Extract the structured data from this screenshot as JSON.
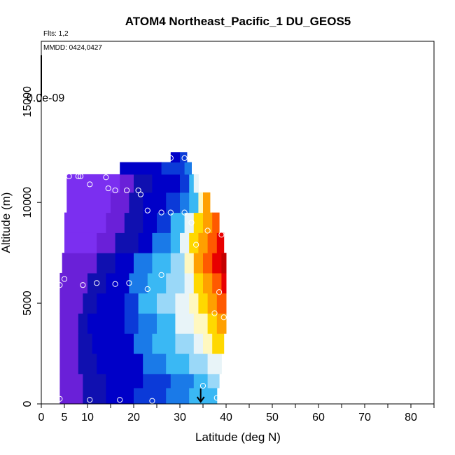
{
  "chart_data": {
    "type": "heatmap",
    "title": "ATOM4 Northeast_Pacific_1 DU_GEOS5",
    "flights_label": "Flts: 1,2",
    "dates_label": "MMDD: 0424,0427",
    "colorbar_label": "0.0e-09",
    "xlabel": "Latitude (deg N)",
    "ylabel": "Altitude (m)",
    "xlim": [
      0,
      85
    ],
    "ylim": [
      0,
      18000
    ],
    "x_tick_labels": [
      "0",
      "5",
      "10",
      "20",
      "30",
      "40",
      "50",
      "60",
      "70",
      "80"
    ],
    "x_tick_values": [
      0,
      5,
      10,
      20,
      30,
      40,
      50,
      60,
      70,
      80
    ],
    "x_minor_ticks": [
      15,
      25,
      35,
      45,
      55,
      65,
      75,
      85
    ],
    "y_tick_labels": [
      "0",
      "5000",
      "10000",
      "15000"
    ],
    "y_tick_values": [
      0,
      5000,
      10000,
      15000
    ],
    "colormap": [
      "#7b2ff0",
      "#6a20d8",
      "#1010b0",
      "#0000c8",
      "#0b3ad8",
      "#1a7ae8",
      "#3ab8f4",
      "#9ad8f8",
      "#e8f4f8",
      "#fff8c0",
      "#ffd800",
      "#ffa000",
      "#ff5a00",
      "#e80000",
      "#c40000"
    ],
    "layers": [
      {
        "alt": [
          0,
          800
        ],
        "x": [
          4.0,
          38.0
        ],
        "stops": [
          [
            4,
            1
          ],
          [
            9,
            2
          ],
          [
            14,
            3
          ],
          [
            20,
            4
          ],
          [
            27,
            5
          ],
          [
            32,
            6
          ]
        ]
      },
      {
        "alt": [
          800,
          1500
        ],
        "x": [
          4.0,
          38.5
        ],
        "stops": [
          [
            4,
            1
          ],
          [
            9,
            2
          ],
          [
            14,
            3
          ],
          [
            22,
            4
          ],
          [
            28,
            5
          ],
          [
            33,
            6
          ],
          [
            36,
            7
          ]
        ]
      },
      {
        "alt": [
          1500,
          2500
        ],
        "x": [
          4.0,
          39.0
        ],
        "stops": [
          [
            4,
            1
          ],
          [
            8,
            2
          ],
          [
            12,
            3
          ],
          [
            22,
            5
          ],
          [
            27,
            6
          ],
          [
            32,
            7
          ],
          [
            36,
            8
          ]
        ]
      },
      {
        "alt": [
          2500,
          3500
        ],
        "x": [
          4.0,
          39.5
        ],
        "stops": [
          [
            4,
            1
          ],
          [
            8,
            2
          ],
          [
            11,
            3
          ],
          [
            20,
            5
          ],
          [
            24,
            6
          ],
          [
            29,
            7
          ],
          [
            33,
            8
          ],
          [
            35,
            9
          ],
          [
            37,
            10
          ]
        ]
      },
      {
        "alt": [
          3500,
          4500
        ],
        "x": [
          4.0,
          40.0
        ],
        "stops": [
          [
            4,
            1
          ],
          [
            8,
            2
          ],
          [
            10,
            3
          ],
          [
            18,
            4
          ],
          [
            21,
            5
          ],
          [
            25,
            6
          ],
          [
            29,
            8
          ],
          [
            33,
            9
          ],
          [
            36,
            10
          ],
          [
            38,
            11
          ]
        ]
      },
      {
        "alt": [
          4500,
          5500
        ],
        "x": [
          4.0,
          40.0
        ],
        "stops": [
          [
            4,
            1
          ],
          [
            9,
            2
          ],
          [
            12,
            3
          ],
          [
            18,
            4
          ],
          [
            21,
            6
          ],
          [
            25,
            7
          ],
          [
            29,
            8
          ],
          [
            32,
            9
          ],
          [
            34,
            10
          ],
          [
            36,
            11
          ],
          [
            38,
            12
          ]
        ]
      },
      {
        "alt": [
          5500,
          6500
        ],
        "x": [
          4.0,
          40.0
        ],
        "stops": [
          [
            4,
            1
          ],
          [
            10,
            2
          ],
          [
            14,
            3
          ],
          [
            19,
            5
          ],
          [
            23,
            6
          ],
          [
            27,
            7
          ],
          [
            31,
            8
          ],
          [
            33,
            10
          ],
          [
            35,
            11
          ],
          [
            37,
            12
          ],
          [
            39,
            13
          ]
        ]
      },
      {
        "alt": [
          6500,
          7500
        ],
        "x": [
          4.5,
          40.0
        ],
        "stops": [
          [
            4.5,
            1
          ],
          [
            12,
            2
          ],
          [
            16,
            3
          ],
          [
            20,
            5
          ],
          [
            24,
            6
          ],
          [
            28,
            7
          ],
          [
            31,
            9
          ],
          [
            33,
            11
          ],
          [
            35,
            12
          ],
          [
            37,
            13
          ],
          [
            39,
            14
          ]
        ]
      },
      {
        "alt": [
          7500,
          8500
        ],
        "x": [
          5.0,
          39.5
        ],
        "stops": [
          [
            5,
            0
          ],
          [
            12,
            1
          ],
          [
            16,
            2
          ],
          [
            21,
            3
          ],
          [
            24,
            5
          ],
          [
            28,
            6
          ],
          [
            30,
            8
          ],
          [
            32,
            10
          ],
          [
            34,
            11
          ],
          [
            36,
            12
          ],
          [
            38,
            13
          ]
        ]
      },
      {
        "alt": [
          8500,
          9500
        ],
        "x": [
          5.0,
          38.5
        ],
        "stops": [
          [
            5,
            0
          ],
          [
            14,
            1
          ],
          [
            18,
            2
          ],
          [
            22,
            3
          ],
          [
            25,
            4
          ],
          [
            28,
            6
          ],
          [
            31,
            8
          ],
          [
            33,
            10
          ],
          [
            35,
            11
          ],
          [
            37,
            12
          ]
        ]
      },
      {
        "alt": [
          9500,
          10500
        ],
        "x": [
          5.5,
          36.5
        ],
        "stops": [
          [
            5.5,
            0
          ],
          [
            15,
            1
          ],
          [
            19,
            2
          ],
          [
            22,
            3
          ],
          [
            27,
            4
          ],
          [
            30,
            5
          ],
          [
            32,
            6
          ],
          [
            34,
            9
          ],
          [
            35,
            11
          ]
        ]
      },
      {
        "alt": [
          10500,
          11400
        ],
        "x": [
          5.5,
          34.0
        ],
        "stops": [
          [
            5.5,
            0
          ],
          [
            17,
            1
          ],
          [
            20,
            2
          ],
          [
            24,
            3
          ],
          [
            30,
            4
          ],
          [
            32,
            6
          ],
          [
            33,
            8
          ]
        ]
      },
      {
        "alt": [
          11400,
          12000
        ],
        "x": [
          17.0,
          32.5
        ],
        "stops": [
          [
            17,
            3
          ],
          [
            26,
            4
          ],
          [
            31,
            5
          ]
        ]
      },
      {
        "alt": [
          12000,
          12500
        ],
        "x": [
          28.0,
          31.5
        ],
        "stops": [
          [
            28,
            3
          ],
          [
            30,
            4
          ]
        ]
      }
    ],
    "points": [
      {
        "x": 4.0,
        "y": 250
      },
      {
        "x": 10.5,
        "y": 200
      },
      {
        "x": 17.0,
        "y": 200
      },
      {
        "x": 24.0,
        "y": 150
      },
      {
        "x": 38.0,
        "y": 300
      },
      {
        "x": 35.0,
        "y": 900
      },
      {
        "x": 4.0,
        "y": 5900
      },
      {
        "x": 5.0,
        "y": 6200
      },
      {
        "x": 9.0,
        "y": 5900
      },
      {
        "x": 12.0,
        "y": 6000
      },
      {
        "x": 16.0,
        "y": 5950
      },
      {
        "x": 19.0,
        "y": 6000
      },
      {
        "x": 23.0,
        "y": 5700
      },
      {
        "x": 26.0,
        "y": 6400
      },
      {
        "x": 38.5,
        "y": 5550
      },
      {
        "x": 39.5,
        "y": 4300
      },
      {
        "x": 37.5,
        "y": 4500
      },
      {
        "x": 6.0,
        "y": 11300
      },
      {
        "x": 8.0,
        "y": 11300
      },
      {
        "x": 8.5,
        "y": 11300
      },
      {
        "x": 10.5,
        "y": 10900
      },
      {
        "x": 14.5,
        "y": 10700
      },
      {
        "x": 16.0,
        "y": 10600
      },
      {
        "x": 18.5,
        "y": 10600
      },
      {
        "x": 21.0,
        "y": 10600
      },
      {
        "x": 21.5,
        "y": 10400
      },
      {
        "x": 14.0,
        "y": 11250
      },
      {
        "x": 23.0,
        "y": 9600
      },
      {
        "x": 26.0,
        "y": 9500
      },
      {
        "x": 28.0,
        "y": 9500
      },
      {
        "x": 31.0,
        "y": 9500
      },
      {
        "x": 32.5,
        "y": 9000
      },
      {
        "x": 36.0,
        "y": 8600
      },
      {
        "x": 39.0,
        "y": 8400
      },
      {
        "x": 28.0,
        "y": 12200
      },
      {
        "x": 31.0,
        "y": 12200
      },
      {
        "x": 33.5,
        "y": 7900
      }
    ],
    "arrow_x": 34.5,
    "colors": {
      "axis": "#000000",
      "points": "#ffffff",
      "arrow": "#000000"
    }
  }
}
